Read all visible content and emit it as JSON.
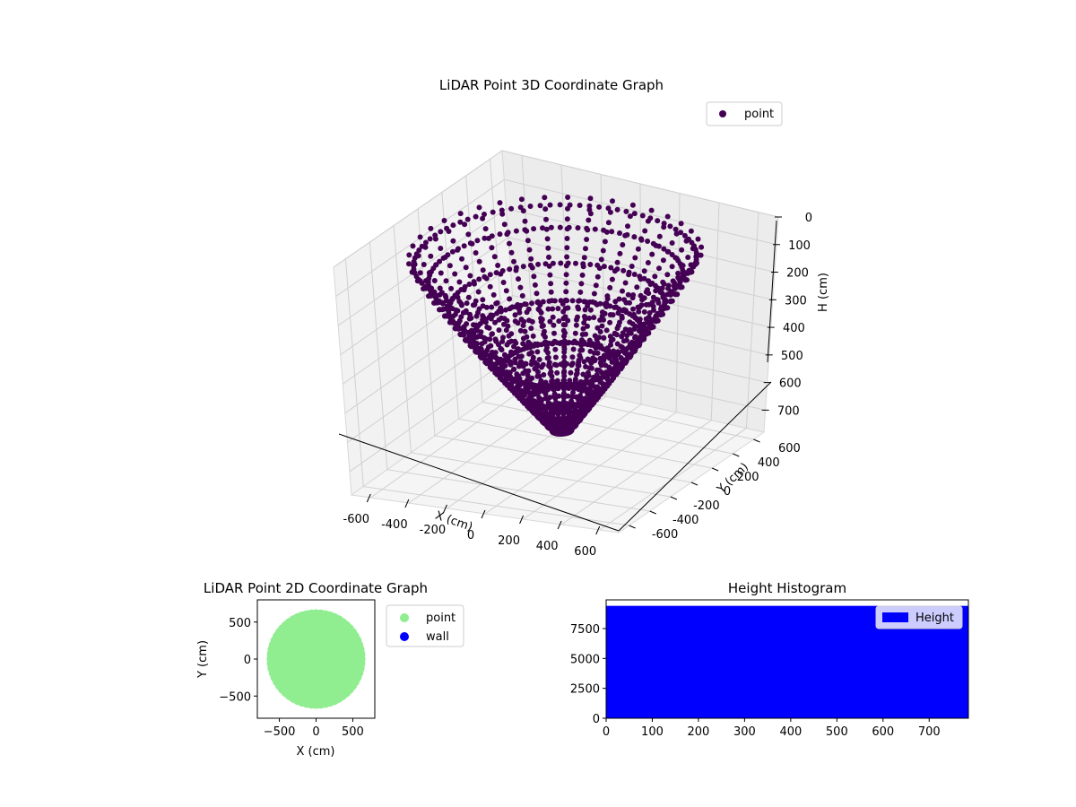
{
  "chart_data": [
    {
      "type": "scatter",
      "projection": "3d",
      "title": "LiDAR Point 3D Coordinate Graph",
      "xlabel": "X (cm)",
      "ylabel": "Y (cm)",
      "zlabel": "H (cm)",
      "xlim": [
        -700,
        700
      ],
      "ylim": [
        -700,
        700
      ],
      "zlim": [
        0,
        780
      ],
      "z_inverted": true,
      "x_ticks": [
        "-600",
        "-400",
        "-200",
        "0",
        "200",
        "400",
        "600"
      ],
      "y_ticks": [
        "-600",
        "-400",
        "-200",
        "0",
        "200",
        "400",
        "600"
      ],
      "z_ticks": [
        "0",
        "100",
        "200",
        "300",
        "400",
        "500",
        "600",
        "700"
      ],
      "grid": true,
      "legend": "top-right",
      "series": [
        {
          "name": "point",
          "color": "#440154",
          "description_points": "bowl-shaped point cloud on concentric rings",
          "rings": [
            {
              "radius": 620,
              "height": 80
            },
            {
              "radius": 560,
              "height": 140
            },
            {
              "radius": 480,
              "height": 240
            },
            {
              "radius": 380,
              "height": 340
            },
            {
              "radius": 260,
              "height": 450
            },
            {
              "radius": 140,
              "height": 560
            }
          ],
          "outlier": {
            "x": 0,
            "y": 300,
            "h": 0
          }
        }
      ]
    },
    {
      "type": "scatter",
      "title": "LiDAR Point 2D Coordinate Graph",
      "xlabel": "X (cm)",
      "ylabel": "Y (cm)",
      "xlim": [
        -800,
        800
      ],
      "ylim": [
        -800,
        800
      ],
      "x_ticks": [
        "−500",
        "0",
        "500"
      ],
      "y_ticks": [
        "−500",
        "0",
        "500"
      ],
      "legend": "outside-right",
      "series": [
        {
          "name": "point",
          "color": "#90ee90",
          "extent_radius": 650
        },
        {
          "name": "wall",
          "color": "#0000ff"
        }
      ]
    },
    {
      "type": "bar",
      "title": "Height Histogram",
      "xlabel": "",
      "ylabel": "",
      "xlim": [
        0,
        785
      ],
      "ylim": [
        0,
        9900
      ],
      "x_ticks": [
        "0",
        "100",
        "200",
        "300",
        "400",
        "500",
        "600",
        "700"
      ],
      "y_ticks": [
        "0",
        "2500",
        "5000",
        "7500"
      ],
      "legend": "top-right",
      "series": [
        {
          "name": "Height",
          "color": "#0000ff",
          "bin_range": [
            0,
            785
          ],
          "count": 9400
        }
      ]
    }
  ]
}
